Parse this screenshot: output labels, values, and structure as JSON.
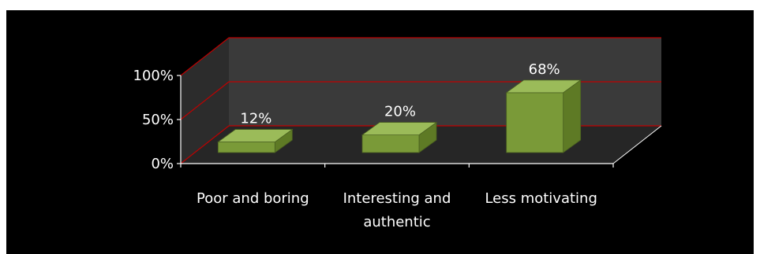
{
  "chart_data": {
    "type": "bar",
    "categories": [
      "Poor and boring",
      "Interesting and authentic",
      "Less motivating"
    ],
    "category_lines": [
      [
        "Poor and boring"
      ],
      [
        "Interesting and",
        "authentic"
      ],
      [
        "Less motivating"
      ]
    ],
    "values": [
      12,
      20,
      68
    ],
    "data_labels": [
      "12%",
      "20%",
      "68%"
    ],
    "yticks": [
      "0%",
      "50%",
      "100%"
    ],
    "ylim": [
      0,
      100
    ],
    "title": "",
    "xlabel": "",
    "ylabel": "",
    "grid": true,
    "legend": "none",
    "colors": {
      "background": "#000000",
      "wall": "#3a3a3a",
      "floor": "#2e2e2e",
      "gridline": "#c00000",
      "bar_front": "#7a9a38",
      "bar_top": "#9bbb59",
      "bar_side": "#5e7a25",
      "text": "#ffffff"
    }
  }
}
